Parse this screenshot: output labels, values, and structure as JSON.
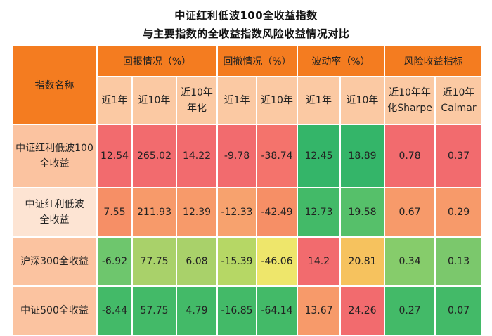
{
  "title_line1": "中证红利低波100全收益指数",
  "title_line2": "与主要指数的全收益指数风险收益情况对比",
  "table": {
    "index_name_header": "指数名称",
    "groups": [
      "回报情况（%）",
      "回撤情况（%）",
      "波动率（%）",
      "风险收益指标"
    ],
    "subheaders": [
      "近1年",
      "近10年",
      "近10年\n年化",
      "近1年",
      "近10年",
      "近1年",
      "近10年",
      "近10年年\n化Sharpe",
      "近10年\nCalmar"
    ],
    "rows": [
      {
        "name": "中证红利低波100\n全收益",
        "values": [
          "12.54",
          "265.02",
          "14.22",
          "-9.78",
          "-38.74",
          "12.45",
          "18.89",
          "0.78",
          "0.37"
        ]
      },
      {
        "name": "中证红利低波\n全收益",
        "values": [
          "7.55",
          "211.93",
          "12.39",
          "-12.33",
          "-42.49",
          "12.73",
          "19.58",
          "0.67",
          "0.29"
        ]
      },
      {
        "name": "沪深300全收益",
        "values": [
          "-6.92",
          "77.75",
          "6.08",
          "-15.39",
          "-46.06",
          "14.2",
          "20.81",
          "0.34",
          "0.13"
        ]
      },
      {
        "name": "中证500全收益",
        "values": [
          "-8.44",
          "57.75",
          "4.79",
          "-16.85",
          "-64.14",
          "13.67",
          "24.26",
          "0.27",
          "0.07"
        ]
      }
    ]
  }
}
